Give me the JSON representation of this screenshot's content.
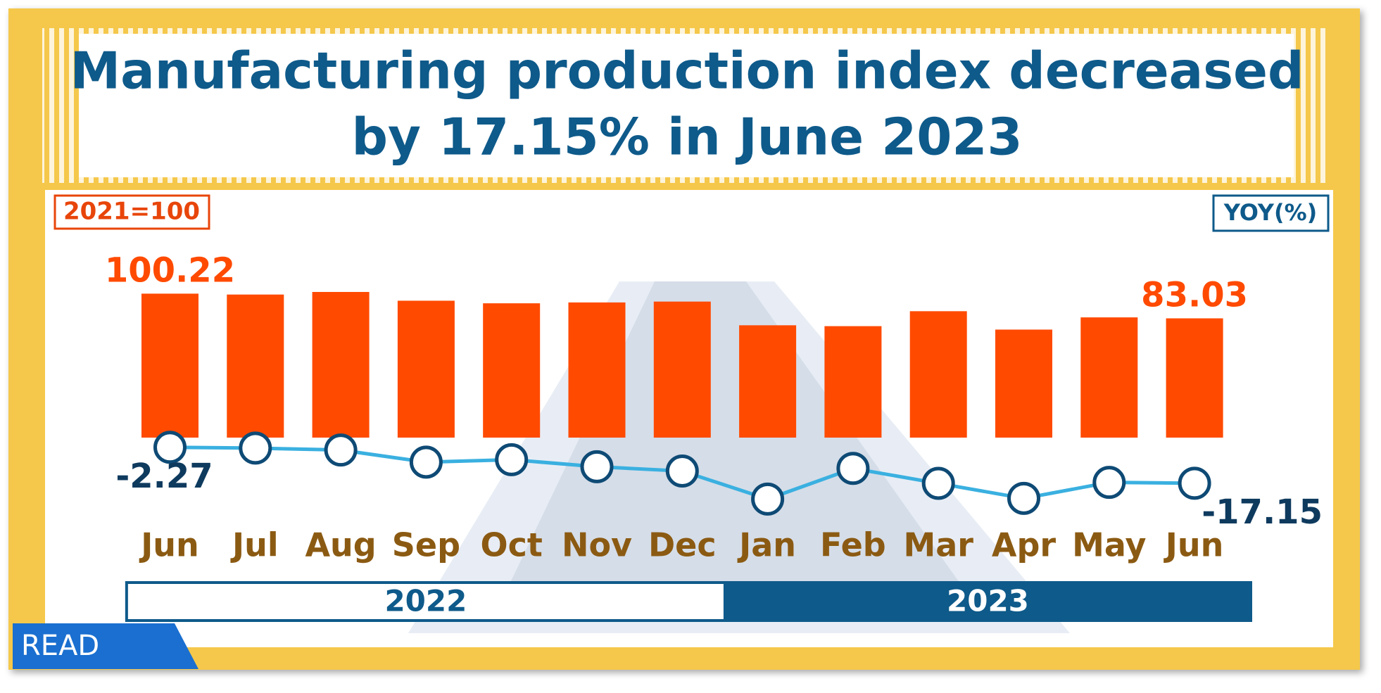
{
  "chart_data": {
    "type": "bar",
    "title_lines": [
      "Manufacturing production index decreased",
      "by 17.15% in June 2023"
    ],
    "badge": "READ",
    "categories": [
      "Jun",
      "Jul",
      "Aug",
      "Sep",
      "Oct",
      "Nov",
      "Dec",
      "Jan",
      "Feb",
      "Mar",
      "Apr",
      "May",
      "Jun"
    ],
    "groups": [
      {
        "label": "2022",
        "count": 7
      },
      {
        "label": "2023",
        "count": 6
      }
    ],
    "series": [
      {
        "name": "2021=100",
        "type": "bar",
        "color": "#ff4a00",
        "values": [
          100.22,
          99.6,
          101.4,
          95.3,
          93.5,
          94.1,
          94.7,
          78.2,
          77.6,
          88.0,
          75.2,
          83.7,
          83.03
        ],
        "value_labels": [
          "100.22",
          null,
          null,
          null,
          null,
          null,
          null,
          null,
          null,
          null,
          null,
          null,
          "83.03"
        ]
      },
      {
        "name": "YOY(%)",
        "type": "line",
        "axis": "y2",
        "color": "#3ab0e0",
        "values": [
          -2.27,
          -2.6,
          -3.4,
          -8.4,
          -7.4,
          -10.3,
          -12.1,
          -23.7,
          -11.0,
          -17.2,
          -23.4,
          -16.8,
          -17.15
        ],
        "value_labels": [
          "-2.27",
          null,
          null,
          null,
          null,
          null,
          null,
          null,
          null,
          null,
          null,
          null,
          "-17.15"
        ]
      }
    ],
    "ylim": [
      0,
      120
    ],
    "y2lim": [
      -30,
      0
    ]
  }
}
